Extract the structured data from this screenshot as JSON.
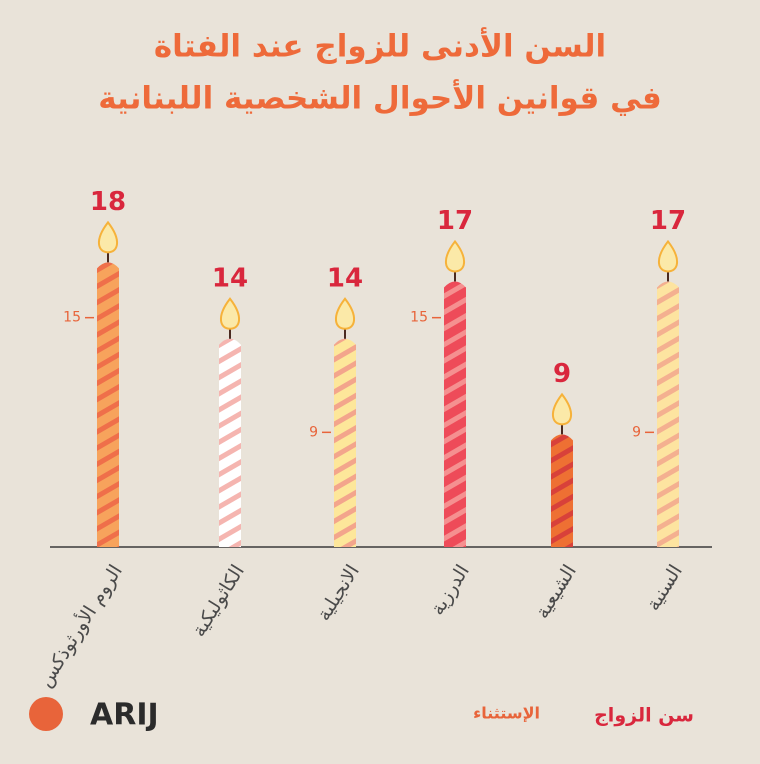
{
  "chart_data": {
    "type": "bar",
    "title": "السن الأدنى للزواج عند الفتاة",
    "subtitle": "في قوانين الأحوال الشخصية اللبنانية",
    "categories": [
      "الروم الأورثوذكس",
      "الكاثوليكية",
      "الانجيلية",
      "الدرزية",
      "الشيعية",
      "السنية"
    ],
    "series": [
      {
        "name": "سن الزواج",
        "color": "#d9273d",
        "values": [
          18,
          14,
          14,
          17,
          9,
          17
        ]
      },
      {
        "name": "الإستثناء",
        "color": "#e8643a",
        "values": [
          15,
          null,
          9,
          15,
          null,
          9
        ]
      }
    ],
    "bar_colors": [
      [
        "#f7a35c",
        "#ef6f4a"
      ],
      [
        "#ffffff",
        "#f5b5b0"
      ],
      [
        "#fde79a",
        "#f3a58c"
      ],
      [
        "#ee4b59",
        "#f59090"
      ],
      [
        "#ee7033",
        "#d8413a"
      ],
      [
        "#fde4a0",
        "#f4b090"
      ]
    ],
    "ylim": [
      3,
      21
    ],
    "logo": "ARIJ"
  }
}
